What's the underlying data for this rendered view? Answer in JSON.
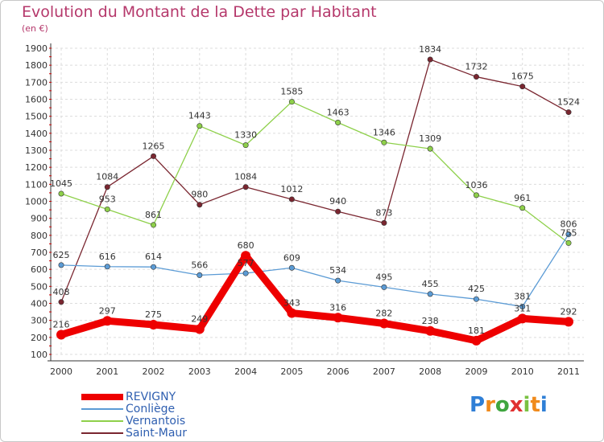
{
  "header": {
    "title": "Evolution du Montant de la Dette par Habitant",
    "subtitle": "(en €)"
  },
  "logo": {
    "text": "Proxiti",
    "letters": [
      "P",
      "r",
      "o",
      "x",
      "i",
      "t",
      "i"
    ],
    "letter_colors": [
      "#2f7fd6",
      "#f08a1c",
      "#3fa63f",
      "#e03030",
      "#7ac142",
      "#f08a1c",
      "#2f7fd6"
    ]
  },
  "chart_data": {
    "type": "line",
    "title": "Evolution du Montant de la Dette par Habitant",
    "subtitle": "(en €)",
    "xlabel": "",
    "ylabel": "",
    "x": [
      "2000",
      "2001",
      "2002",
      "2003",
      "2004",
      "2005",
      "2006",
      "2007",
      "2008",
      "2009",
      "2010",
      "2011"
    ],
    "ylim": [
      100,
      1900
    ],
    "yticks": [
      "100",
      "200",
      "300",
      "400",
      "500",
      "600",
      "700",
      "800",
      "900",
      "1000",
      "1100",
      "1200",
      "1300",
      "1400",
      "1500",
      "1600",
      "1700",
      "1800",
      "1900"
    ],
    "grid": true,
    "legend": "bottom-left",
    "series": [
      {
        "name": "REVIGNY",
        "color": "#ee0000",
        "values": [
          216,
          297,
          275,
          249,
          680,
          343,
          316,
          282,
          238,
          181,
          311,
          292
        ],
        "labels": [
          "216",
          "297",
          "275",
          "249",
          "680",
          "343",
          "316",
          "282",
          "238",
          "181",
          "311",
          "292"
        ]
      },
      {
        "name": "Conliège",
        "color": "#5b9bd5",
        "values": [
          625,
          616,
          614,
          566,
          577,
          609,
          534,
          495,
          455,
          425,
          381,
          806
        ],
        "labels": [
          "625",
          "616",
          "614",
          "566",
          "577",
          "609",
          "534",
          "495",
          "455",
          "425",
          "381",
          "806"
        ]
      },
      {
        "name": "Vernantois",
        "color": "#8ed04a",
        "values": [
          1045,
          953,
          861,
          1443,
          1330,
          1585,
          1463,
          1346,
          1309,
          1036,
          961,
          755
        ],
        "labels": [
          "1045",
          "953",
          "861",
          "1443",
          "1330",
          "1585",
          "1463",
          "1346",
          "1309",
          "1036",
          "961",
          "755"
        ]
      },
      {
        "name": "Saint-Maur",
        "color": "#7a2630",
        "values": [
          408,
          1084,
          1265,
          980,
          1084,
          1012,
          940,
          873,
          1834,
          1732,
          1675,
          1524
        ],
        "labels": [
          "408",
          "1084",
          "1265",
          "980",
          "1084",
          "1012",
          "940",
          "873",
          "1834",
          "1732",
          "1675",
          "1524"
        ]
      }
    ]
  }
}
